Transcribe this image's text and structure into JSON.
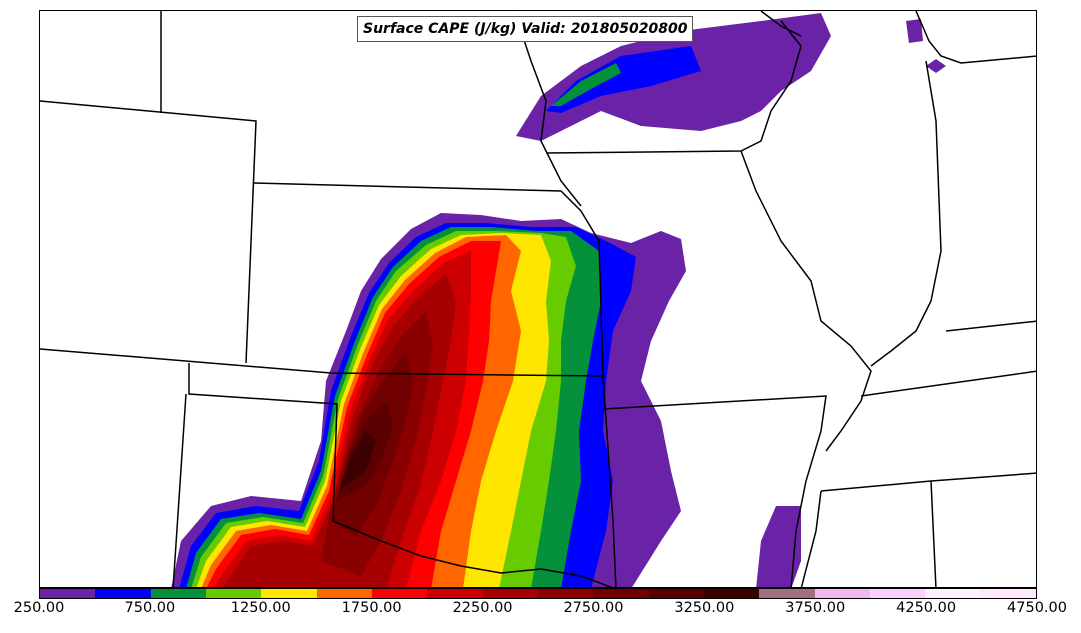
{
  "title": "Surface CAPE (J/kg) Valid: 201805020800",
  "colorbar": {
    "colors": [
      "#6a23a6",
      "#0000ff",
      "#05903c",
      "#66cc00",
      "#ffe600",
      "#ff6600",
      "#ff0000",
      "#cc0000",
      "#a60000",
      "#8a0000",
      "#700000",
      "#5a0000",
      "#3d0000",
      "#a07080",
      "#f0b8f0",
      "#ffd0ff",
      "#fff0ff",
      "#ffe8ff"
    ],
    "tick_labels": [
      "250.00",
      "750.00",
      "1250.00",
      "1750.00",
      "2250.00",
      "2750.00",
      "3250.00",
      "3750.00",
      "4250.00",
      "4750.00"
    ]
  },
  "chart_data": {
    "type": "heatmap",
    "title": "Surface CAPE (J/kg) Valid: 201805020800",
    "field": "Surface CAPE",
    "units": "J/kg",
    "valid": "201805020800",
    "levels": [
      250,
      500,
      750,
      1000,
      1250,
      1500,
      1750,
      2000,
      2250,
      2500,
      2750,
      3000,
      3250,
      3500,
      3750,
      4000,
      4250,
      4500,
      4750
    ],
    "colorbar_range": [
      250,
      4750
    ],
    "colorbar_ticks": [
      250,
      750,
      1250,
      1750,
      2250,
      2750,
      3250,
      3750,
      4250,
      4750
    ]
  }
}
